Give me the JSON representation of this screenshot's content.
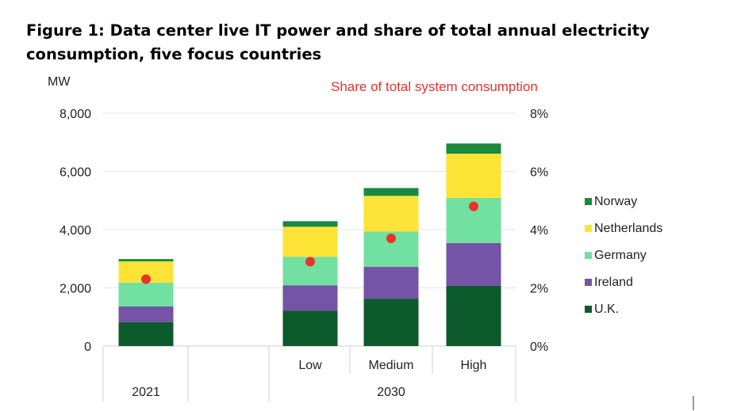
{
  "chart_data": {
    "type": "bar",
    "stacked": true,
    "title": "Figure 1: Data center live IT power and share of total annual electricity consumption, five focus countries",
    "ylabel": "MW",
    "y2label": "Share of total system consumption",
    "ylim": [
      0,
      8000
    ],
    "y2lim": [
      0,
      8
    ],
    "yticks": [
      "0",
      "2,000",
      "4,000",
      "6,000",
      "8,000"
    ],
    "y2ticks": [
      "0%",
      "2%",
      "4%",
      "6%",
      "8%"
    ],
    "grid": true,
    "categories": [
      "2021",
      "Low",
      "Medium",
      "High"
    ],
    "groups": [
      {
        "label": "2021",
        "members": [
          "2021"
        ]
      },
      {
        "label": "2030",
        "members": [
          "Low",
          "Medium",
          "High"
        ]
      }
    ],
    "subcategory_labels": [
      "",
      "Low",
      "Medium",
      "High"
    ],
    "series": [
      {
        "name": "U.K.",
        "color": "#0d5a2a",
        "values": [
          820,
          1220,
          1630,
          2070
        ]
      },
      {
        "name": "Ireland",
        "color": "#7553a6",
        "values": [
          540,
          870,
          1090,
          1470
        ]
      },
      {
        "name": "Germany",
        "color": "#72e0a0",
        "values": [
          820,
          980,
          1220,
          1550
        ]
      },
      {
        "name": "Netherlands",
        "color": "#fde335",
        "values": [
          730,
          1030,
          1220,
          1520
        ]
      },
      {
        "name": "Norway",
        "color": "#198a3e",
        "values": [
          80,
          190,
          270,
          350
        ]
      }
    ],
    "share_series": {
      "name": "Share of total system consumption",
      "color": "#e8322a",
      "unit": "%",
      "values": [
        2.3,
        2.9,
        3.7,
        4.8
      ]
    },
    "legend_placement": "right"
  }
}
